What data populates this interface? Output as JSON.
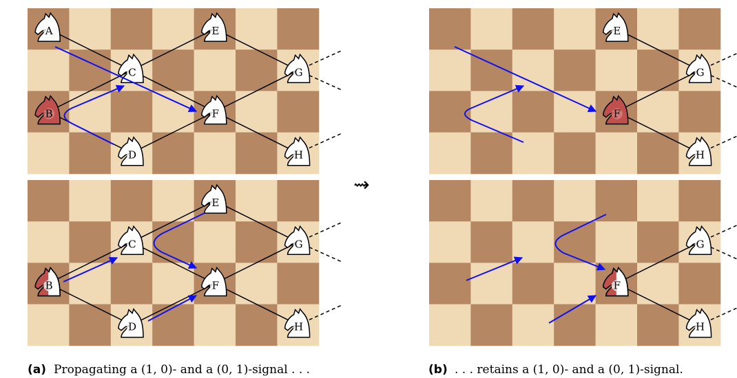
{
  "boards": [
    {
      "knights": [
        "A",
        "B",
        "C",
        "D",
        "E",
        "F",
        "G",
        "H"
      ]
    },
    {
      "knights": [
        "B",
        "C",
        "D",
        "E",
        "F",
        "G",
        "H"
      ]
    },
    {
      "knights": [
        "E",
        "F",
        "G",
        "H"
      ]
    },
    {
      "knights": [
        "F",
        "G",
        "H"
      ]
    }
  ],
  "transition": "⇝",
  "captions": [
    {
      "tag": "(a)",
      "text": "Propagating a (1, 0)- and a (0, 1)-signal . . ."
    },
    {
      "tag": "(b)",
      "text": ". . . retains a (1, 0)- and a (0, 1)-signal."
    }
  ]
}
